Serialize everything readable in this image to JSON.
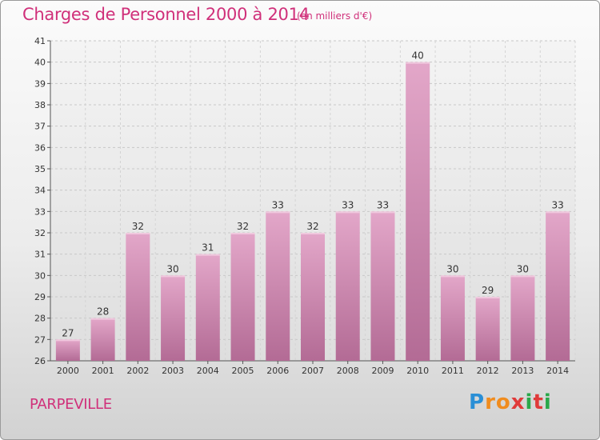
{
  "chart_data": {
    "type": "bar",
    "title": "Charges de Personnel 2000 à 2014",
    "subtitle": "(en milliers d'€)",
    "categories": [
      "2000",
      "2001",
      "2002",
      "2003",
      "2004",
      "2005",
      "2006",
      "2007",
      "2008",
      "2009",
      "2010",
      "2011",
      "2012",
      "2013",
      "2014"
    ],
    "values": [
      27,
      28,
      32,
      30,
      31,
      32,
      33,
      32,
      33,
      33,
      40,
      30,
      29,
      30,
      33
    ],
    "ylim": [
      26,
      41
    ],
    "yticks": [
      "26",
      "27",
      "28",
      "29",
      "30",
      "31",
      "32",
      "33",
      "34",
      "35",
      "36",
      "37",
      "38",
      "39",
      "40",
      "41"
    ],
    "grid": true,
    "bar_color": "#d9a0c1",
    "title_color": "#d0307a"
  },
  "footer": {
    "city": "PARPEVILLE",
    "logo_letters": [
      "P",
      "r",
      "o",
      "x",
      "i",
      "t",
      "i"
    ]
  },
  "logo_colors": [
    "#2a8fd6",
    "#f08c1e",
    "#f08c1e",
    "#e03a3a",
    "#2aa84a",
    "#e03a3a",
    "#2aa84a"
  ]
}
